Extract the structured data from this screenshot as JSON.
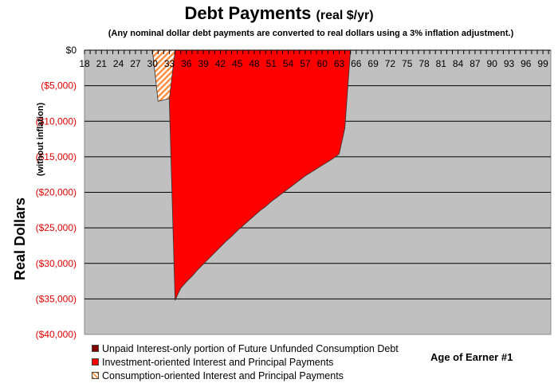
{
  "chart_data": {
    "type": "area",
    "title": "Debt Payments",
    "title_unit": "(real $/yr)",
    "subtitle": "(Any nominal dollar debt payments are converted to real dollars using a 3% inflation adjustment.)",
    "ylabel": "Real Dollars",
    "ylabel_sub": "(without inflation)",
    "xlabel": "Age of Earner #1",
    "ylim": [
      -40000,
      0
    ],
    "xlim": [
      18,
      100
    ],
    "grid": true,
    "plot_background": "#c0c0c0",
    "yticks": [
      0,
      -5000,
      -10000,
      -15000,
      -20000,
      -25000,
      -30000,
      -35000,
      -40000
    ],
    "ytick_labels": [
      "$0",
      "($5,000)",
      "($10,000)",
      "($15,000)",
      "($20,000)",
      "($25,000)",
      "($30,000)",
      "($35,000)",
      "($40,000)"
    ],
    "xtick_labels": [
      "18",
      "21",
      "24",
      "27",
      "30",
      "33",
      "36",
      "39",
      "42",
      "45",
      "48",
      "51",
      "54",
      "57",
      "60",
      "63",
      "66",
      "69",
      "72",
      "75",
      "78",
      "81",
      "84",
      "87",
      "90",
      "93",
      "96",
      "99"
    ],
    "legend_placement": "bottom-left",
    "series": [
      {
        "name": "Unpaid Interest-only portion of Future Unfunded Consumption Debt",
        "color": "#800000",
        "x": [],
        "y": []
      },
      {
        "name": "Investment-oriented Interest and Principal Payments",
        "color": "#ff0000",
        "x": [
          33,
          34,
          35,
          36,
          37,
          38,
          39,
          40,
          41,
          42,
          43,
          44,
          45,
          46,
          47,
          48,
          49,
          50,
          51,
          52,
          53,
          54,
          55,
          56,
          57,
          58,
          59,
          60,
          61,
          62,
          63,
          64,
          65
        ],
        "y": [
          -7500,
          -35200,
          -33500,
          -32600,
          -31800,
          -30900,
          -30100,
          -29300,
          -28500,
          -27700,
          -26900,
          -26200,
          -25400,
          -24700,
          -24000,
          -23300,
          -22600,
          -22000,
          -21300,
          -20700,
          -20100,
          -19500,
          -18900,
          -18300,
          -17700,
          -17200,
          -16700,
          -16200,
          -15700,
          -15200,
          -14600,
          -11000,
          0
        ]
      },
      {
        "name": "Consumption-oriented Interest and Principal Payments",
        "color": "#ff8c3c",
        "pattern": "diagonal-hatch",
        "x": [
          30,
          31,
          32,
          33,
          34
        ],
        "y": [
          0,
          -7200,
          -7000,
          -6800,
          0
        ]
      }
    ]
  }
}
